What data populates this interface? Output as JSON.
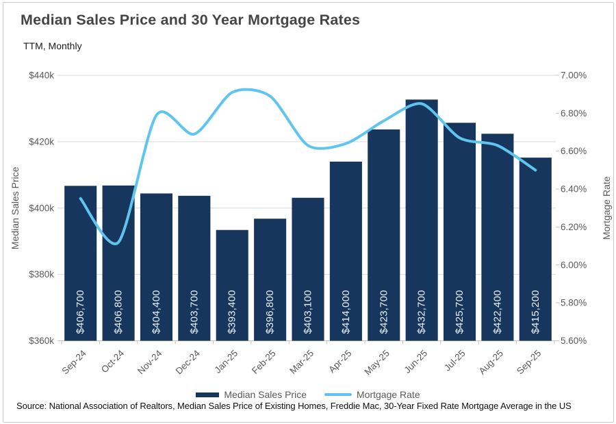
{
  "chart": {
    "title": "Median Sales Price and 30 Year Mortgage Rates",
    "subtitle": "TTM, Monthly",
    "source": "Source: National Association of Realtors, Median Sales Price of Existing Homes, Freddie Mac, 30-Year Fixed Rate Mortgage Average in the US",
    "legend": [
      {
        "label": "Median Sales Price",
        "swatch": "bar",
        "color": "#17365d"
      },
      {
        "label": "Mortgage Rate",
        "swatch": "line",
        "color": "#5fc5ef"
      }
    ]
  },
  "chart_data": {
    "type": "combo",
    "categories": [
      "Sep-24",
      "Oct-24",
      "Nov-24",
      "Dec-24",
      "Jan-25",
      "Feb-25",
      "Mar-25",
      "Apr-25",
      "May-25",
      "Jun-25",
      "Jul-25",
      "Aug-25",
      "Sep-25"
    ],
    "series": [
      {
        "name": "Median Sales Price",
        "type": "bar",
        "axis": "left",
        "color": "#17365d",
        "values": [
          406700,
          406800,
          404400,
          403700,
          393400,
          396800,
          403100,
          414000,
          423700,
          432700,
          425700,
          422400,
          415200
        ],
        "labels": [
          "$406,700",
          "$406,800",
          "$404,400",
          "$403,700",
          "$393,400",
          "$396,800",
          "$403,100",
          "$414,000",
          "$423,700",
          "$432,700",
          "$425,700",
          "$422,400",
          "$415,200"
        ],
        "label_color": "#eaf0f6"
      },
      {
        "name": "Mortgage Rate",
        "type": "line",
        "axis": "right",
        "color": "#5fc5ef",
        "smooth": true,
        "values": [
          6.35,
          6.12,
          6.79,
          6.69,
          6.91,
          6.89,
          6.63,
          6.64,
          6.76,
          6.85,
          6.67,
          6.63,
          6.5
        ]
      }
    ],
    "left_axis": {
      "title": "Median Sales Price",
      "min": 360000,
      "max": 440000,
      "step": 20000,
      "tick_labels": [
        "$360k",
        "$380k",
        "$400k",
        "$420k",
        "$440k"
      ]
    },
    "right_axis": {
      "title": "Mortgage Rate",
      "min": 5.6,
      "max": 7.0,
      "step": 0.2,
      "tick_labels": [
        "5.60%",
        "5.80%",
        "6.00%",
        "6.20%",
        "6.40%",
        "6.60%",
        "6.80%",
        "7.00%"
      ]
    },
    "grid": "horizontal gridlines at left-axis ticks",
    "legend_position": "bottom",
    "tick_color": "#595959",
    "gridline_color": "#d9d9d9"
  }
}
